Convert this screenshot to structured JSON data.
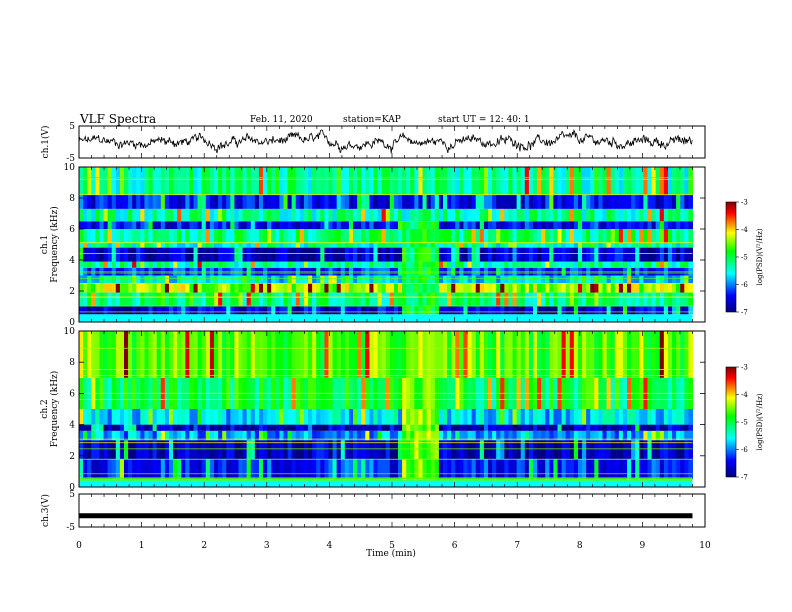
{
  "header": {
    "title": "VLF Spectra",
    "date": "Feb. 11, 2020",
    "station": "station=KAP",
    "start": "start  UT =   12: 40: 1"
  },
  "chart_data": [
    {
      "type": "line",
      "panel": "ch1-waveform",
      "ylabel": "ch.1(V)",
      "xlim": [
        0,
        10
      ],
      "ylim": [
        -5,
        5
      ],
      "yticks": [
        "5",
        "-5"
      ],
      "series": [
        {
          "x_range": [
            0,
            9.8
          ],
          "mean": 0,
          "amplitude_approx": 2
        }
      ]
    },
    {
      "type": "heatmap",
      "panel": "ch1-spectrogram",
      "ylabel": "ch.1\nFrequency (kHz)",
      "xlim": [
        0,
        10
      ],
      "ylim": [
        0,
        10
      ],
      "yticks": [
        "0",
        "2",
        "4",
        "6",
        "8",
        "10"
      ],
      "data_extent_min": 9.8,
      "colorbar": {
        "label": "log(PSD)(V²/Hz)",
        "range": [
          -7,
          -3
        ],
        "ticks": [
          "-3",
          "-4",
          "-5",
          "-6",
          "-7"
        ]
      },
      "bands": [
        {
          "f": [
            0.5,
            1.0
          ],
          "level": -6.6
        },
        {
          "f": [
            1.0,
            1.9
          ],
          "level": -5.2
        },
        {
          "f": [
            1.9,
            2.5
          ],
          "level": -4.4
        },
        {
          "f": [
            2.5,
            3.0
          ],
          "level": -5.6
        },
        {
          "f": [
            3.0,
            3.5
          ],
          "level": -6.3
        },
        {
          "f": [
            3.5,
            3.9
          ],
          "level": -5.3
        },
        {
          "f": [
            3.9,
            4.8
          ],
          "level": -6.6
        },
        {
          "f": [
            4.8,
            5.1
          ],
          "level": -5.4
        },
        {
          "f": [
            5.1,
            6.0
          ],
          "level": -5.2
        },
        {
          "f": [
            6.0,
            6.5
          ],
          "level": -6.4
        },
        {
          "f": [
            6.5,
            7.3
          ],
          "level": -5.3
        },
        {
          "f": [
            7.3,
            8.2
          ],
          "level": -6.4
        },
        {
          "f": [
            8.2,
            10.0
          ],
          "level": -5.3
        }
      ],
      "events": [
        {
          "t": [
            5.1,
            5.7
          ],
          "f": [
            0.5,
            6.8
          ],
          "level": -5.0
        }
      ]
    },
    {
      "type": "heatmap",
      "panel": "ch2-spectrogram",
      "ylabel": "ch.2\nFrequency (kHz)",
      "xlim": [
        0,
        10
      ],
      "ylim": [
        0,
        10
      ],
      "yticks": [
        "0",
        "2",
        "4",
        "6",
        "8",
        "10"
      ],
      "data_extent_min": 9.8,
      "colorbar": {
        "label": "log(PSD)(V²/Hz)",
        "range": [
          -7,
          -3
        ],
        "ticks": [
          "-3",
          "-4",
          "-5",
          "-6",
          "-7"
        ]
      },
      "bands": [
        {
          "f": [
            0.5,
            1.8
          ],
          "level": -6.3
        },
        {
          "f": [
            1.8,
            3.0
          ],
          "level": -6.7
        },
        {
          "f": [
            3.0,
            3.6
          ],
          "level": -5.9
        },
        {
          "f": [
            3.6,
            4.0
          ],
          "level": -6.7
        },
        {
          "f": [
            4.0,
            5.0
          ],
          "level": -5.7
        },
        {
          "f": [
            5.0,
            7.0
          ],
          "level": -5.0
        },
        {
          "f": [
            7.0,
            10.0
          ],
          "level": -4.6
        }
      ],
      "events": [
        {
          "t": [
            5.1,
            5.7
          ],
          "f": [
            0.5,
            9.0
          ],
          "level": -4.5
        }
      ]
    },
    {
      "type": "line",
      "panel": "ch3-waveform",
      "ylabel": "ch.3(V)",
      "xlim": [
        0,
        10
      ],
      "ylim": [
        -5,
        5
      ],
      "yticks": [
        "5",
        "-5"
      ],
      "series": [
        {
          "x_range": [
            0,
            9.8
          ],
          "value": -1.6
        }
      ]
    }
  ],
  "xaxis": {
    "label": "Time (min)",
    "ticks": [
      "0",
      "1",
      "2",
      "3",
      "4",
      "5",
      "6",
      "7",
      "8",
      "9",
      "10"
    ]
  },
  "colors": {
    "colormap": [
      "#00007f",
      "#0000ff",
      "#00ffff",
      "#00ff00",
      "#ffff00",
      "#ff0000",
      "#7f0000"
    ]
  }
}
